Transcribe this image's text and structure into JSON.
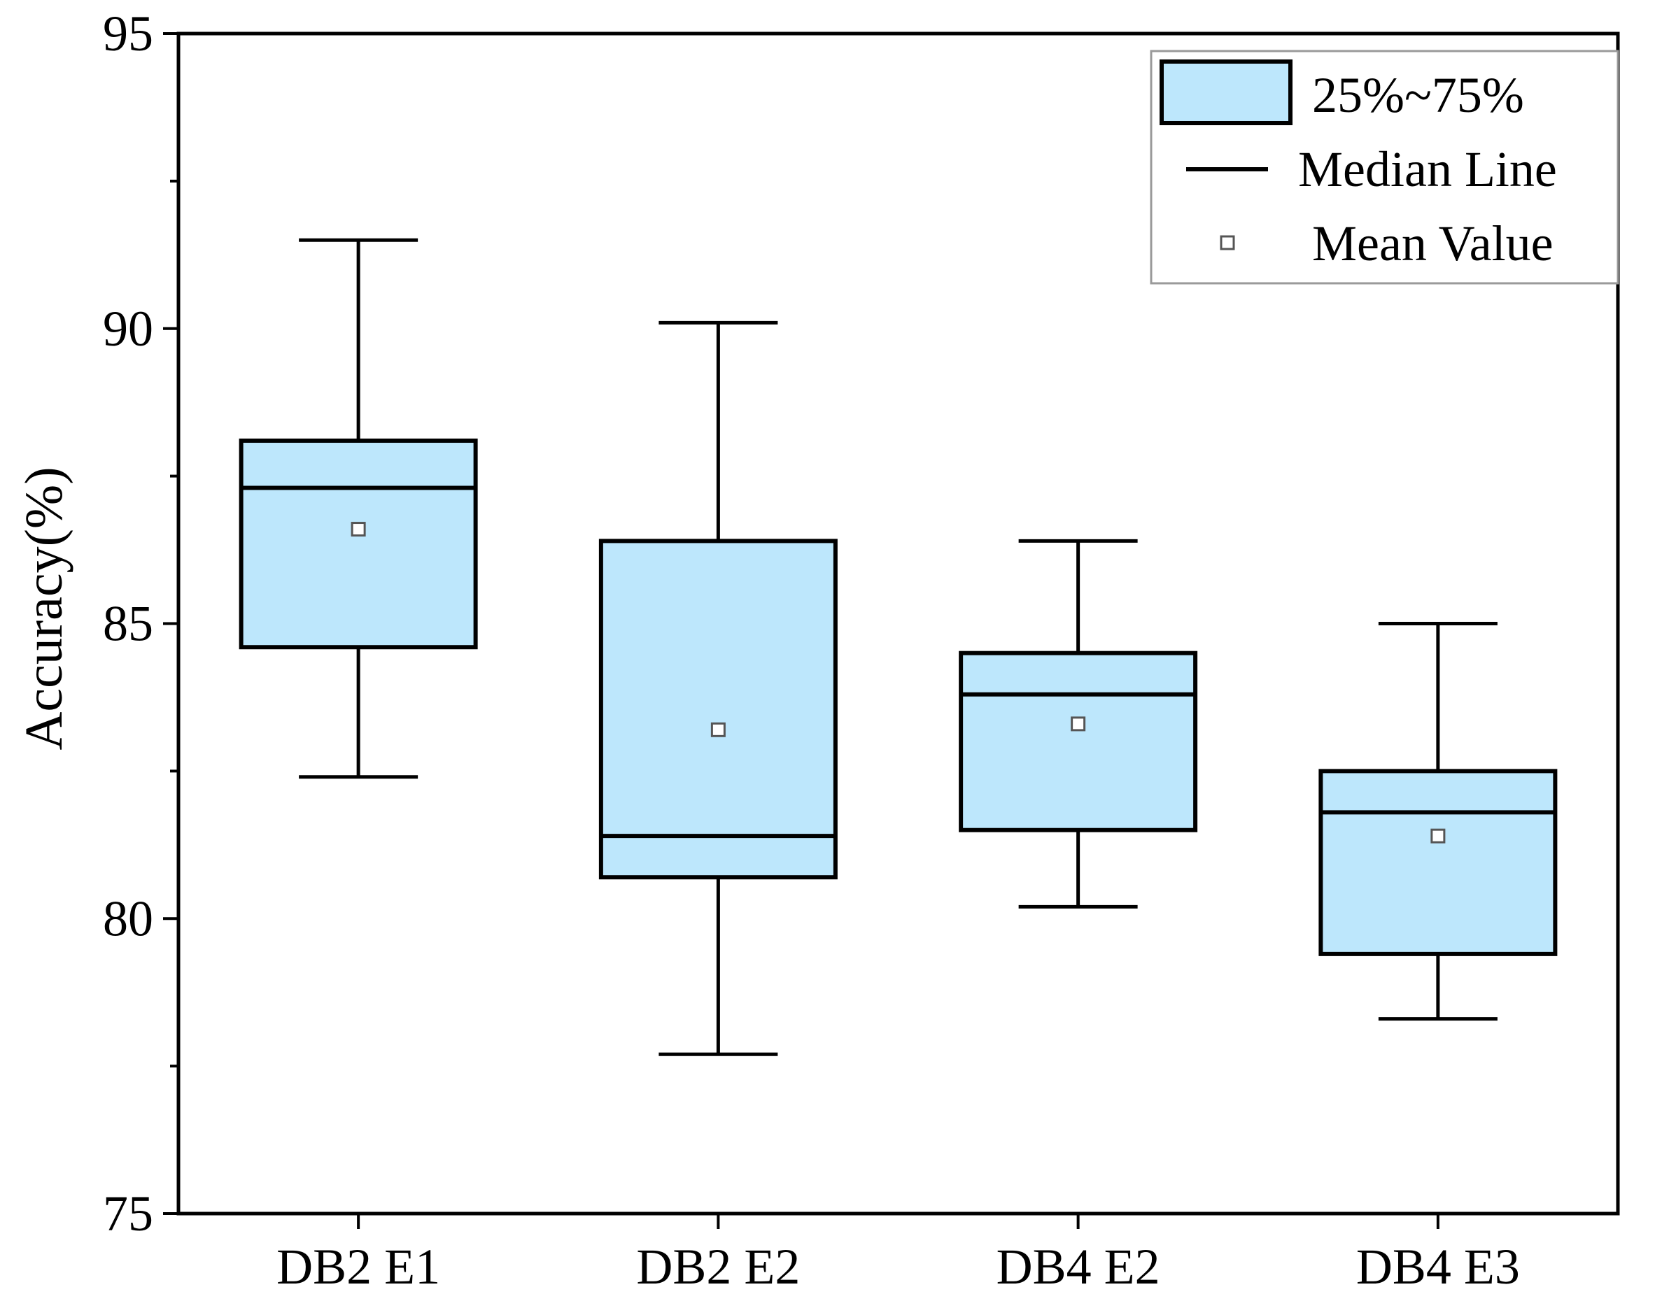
{
  "chart_data": {
    "type": "box",
    "title": "",
    "xlabel": "",
    "ylabel": "Accuracy(%)",
    "ylim": [
      75,
      95
    ],
    "yticks": [
      75,
      80,
      85,
      90,
      95
    ],
    "categories": [
      "DB2 E1",
      "DB2 E2",
      "DB4 E2",
      "DB4 E3"
    ],
    "boxes": [
      {
        "name": "DB2 E1",
        "whisker_low": 82.4,
        "q1": 84.6,
        "median": 87.3,
        "q3": 88.1,
        "whisker_high": 91.5,
        "mean": 86.6
      },
      {
        "name": "DB2 E2",
        "whisker_low": 77.7,
        "q1": 80.7,
        "median": 81.4,
        "q3": 86.4,
        "whisker_high": 90.1,
        "mean": 83.2
      },
      {
        "name": "DB4 E2",
        "whisker_low": 80.2,
        "q1": 81.5,
        "median": 83.8,
        "q3": 84.5,
        "whisker_high": 86.4,
        "mean": 83.3
      },
      {
        "name": "DB4 E3",
        "whisker_low": 78.3,
        "q1": 79.4,
        "median": 81.8,
        "q3": 82.5,
        "whisker_high": 85.0,
        "mean": 81.4
      }
    ],
    "legend": {
      "position": "top-right",
      "items": [
        "25%~75%",
        "Median Line",
        "Mean Value"
      ]
    },
    "colors": {
      "box_fill": "#bde7fc",
      "stroke": "#000000",
      "mean_marker": "#555555"
    }
  }
}
